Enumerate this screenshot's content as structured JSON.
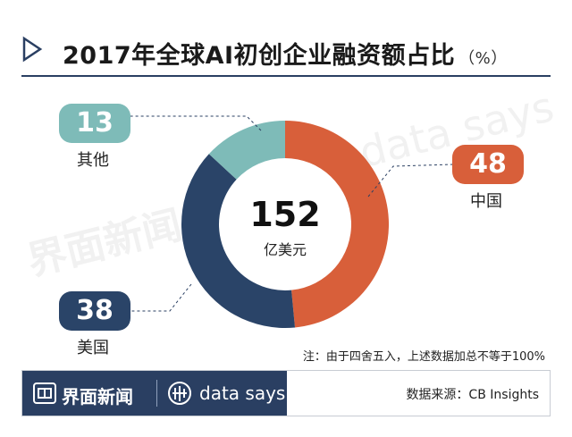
{
  "title": "2017年全球AI初创企业融资额占比",
  "title_unit": "（%）",
  "watermarks": {
    "left": "界面新闻",
    "right": "data says"
  },
  "chart_data": {
    "type": "pie",
    "donut": true,
    "title": "2017年全球AI初创企业融资额占比（%）",
    "total": {
      "value": "152",
      "unit": "亿美元"
    },
    "slices": [
      {
        "label": "中国",
        "value": 48,
        "color": "#d85f3a"
      },
      {
        "label": "美国",
        "value": 38,
        "color": "#2a4468"
      },
      {
        "label": "其他",
        "value": 13,
        "color": "#7ebbb8"
      }
    ]
  },
  "labels": {
    "china": {
      "value": "48",
      "name": "中国"
    },
    "usa": {
      "value": "38",
      "name": "美国"
    },
    "other": {
      "value": "13",
      "name": "其他"
    }
  },
  "note": "注：由于四舍五入，上述数据加总不等于100%",
  "footer": {
    "brand": "界面新闻",
    "data_says": "data says",
    "source": "数据来源：CB Insights"
  }
}
